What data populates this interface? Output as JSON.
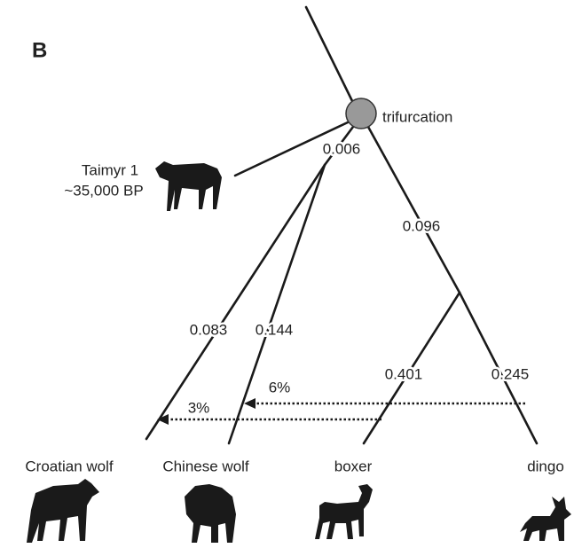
{
  "panel_label": "B",
  "node_label": "trifurcation",
  "sample": {
    "name": "Taimyr 1",
    "age": "~35,000 BP"
  },
  "branches": [
    "0.006",
    "0.096",
    "0.083",
    "0.144",
    "0.401",
    "0.245"
  ],
  "admixture": [
    "6%",
    "3%"
  ],
  "leaves": [
    "Croatian wolf",
    "Chinese wolf",
    "boxer",
    "dingo"
  ]
}
